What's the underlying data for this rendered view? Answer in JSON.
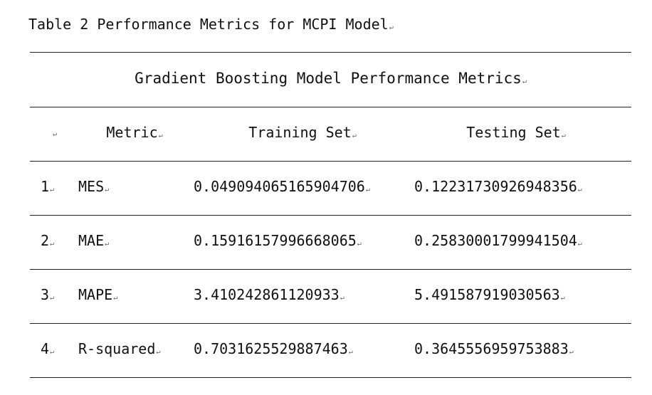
{
  "caption": "Table 2 Performance Metrics for MCPI Model",
  "table": {
    "title": "Gradient Boosting Model Performance Metrics",
    "headers": {
      "index": "",
      "metric": "Metric",
      "training": "Training Set",
      "testing": "Testing Set"
    },
    "rows": [
      {
        "index": "1",
        "metric": "MES",
        "training": "0.049094065165904706",
        "testing": "0.12231730926948356"
      },
      {
        "index": "2",
        "metric": "MAE",
        "training": "0.15916157996668065",
        "testing": "0.25830001799941504"
      },
      {
        "index": "3",
        "metric": "MAPE",
        "training": "3.410242861120933",
        "testing": "5.491587919030563"
      },
      {
        "index": "4",
        "metric": "R-squared",
        "training": "0.7031625529887463",
        "testing": "0.3645556959753883"
      }
    ]
  },
  "paragraph_mark": "↵"
}
